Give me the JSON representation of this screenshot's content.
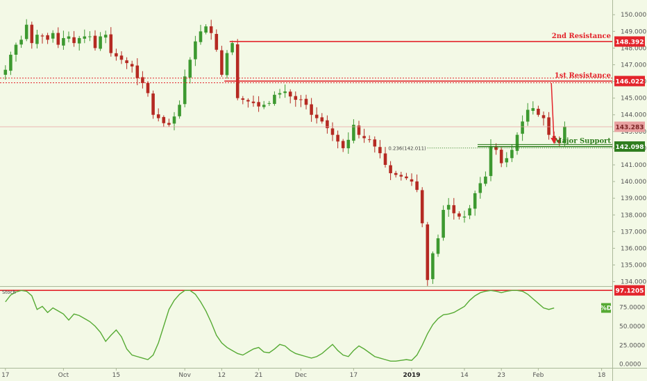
{
  "chart_data": {
    "type": "candlestick",
    "colors": {
      "background": "#f3f9e6",
      "up": "#3d9930",
      "down": "#b52a22",
      "resistance": "#e3242b",
      "support": "#2e7d1e",
      "stoch": "#55aa33",
      "axis_text": "#555555",
      "price_tag": "#e8a0a0"
    },
    "price_axis": {
      "range": [
        133.9,
        150.3
      ],
      "ticks": [
        "150.000",
        "149.000",
        "148.000",
        "147.000",
        "146.000",
        "145.000",
        "144.000",
        "143.000",
        "142.000",
        "141.000",
        "140.000",
        "139.000",
        "138.000",
        "137.000",
        "136.000",
        "135.000",
        "134.000"
      ]
    },
    "stoch_axis": {
      "range": [
        -3,
        100
      ],
      "ticks": [
        "100.0000",
        "75.0000",
        "50.0000",
        "25.0000",
        "0.0000"
      ]
    },
    "x_axis": {
      "labels": [
        {
          "text": "17",
          "bar": 0
        },
        {
          "text": "Oct",
          "bar": 11
        },
        {
          "text": "15",
          "bar": 21
        },
        {
          "text": "Nov",
          "bar": 34
        },
        {
          "text": "12",
          "bar": 41
        },
        {
          "text": "21",
          "bar": 48
        },
        {
          "text": "Dec",
          "bar": 56
        },
        {
          "text": "17",
          "bar": 66
        },
        {
          "text": "2019",
          "bar": 77,
          "bold": true
        },
        {
          "text": "14",
          "bar": 87
        },
        {
          "text": "23",
          "bar": 94
        },
        {
          "text": "Feb",
          "bar": 101
        },
        {
          "text": "18",
          "bar": 113
        }
      ],
      "bar_count": 115
    },
    "levels": [
      {
        "name": "2nd Resistance",
        "value": 148.392,
        "tag": "148.392",
        "from_bar": 43,
        "style": "solid",
        "color": "#e3242b"
      },
      {
        "name": "1st Resistance",
        "value": 146.022,
        "tag": "146.022",
        "from_bar": 42,
        "style": "solid",
        "color": "#e3242b"
      },
      {
        "name": "Major Support",
        "value": 142.098,
        "tag": "142.098",
        "from_bar": 90,
        "style": "solid",
        "color": "#2e7d1e"
      }
    ],
    "dotted_levels": [
      {
        "value": 146.2,
        "color": "#e3242b"
      },
      {
        "value": 145.92,
        "color": "#e3242b"
      }
    ],
    "fib": {
      "label": "0.236(142.011)",
      "value": 142.011,
      "from_bar": 80
    },
    "last_price": {
      "value": 143.283,
      "tag": "143.283"
    },
    "arrow": {
      "from_value": 145.9,
      "to_value": 142.25,
      "bar": 104
    },
    "stoch_level": {
      "value": 97.1205,
      "tag": "97.1205"
    },
    "stoch_badge": "%D",
    "stoch_title": "Stoch",
    "closes": [
      146.7,
      147.6,
      148.2,
      148.5,
      149.4,
      148.3,
      148.8,
      148.7,
      148.5,
      148.9,
      148.2,
      148.6,
      148.7,
      148.3,
      148.6,
      148.7,
      148.7,
      148.0,
      148.7,
      148.8,
      147.7,
      147.5,
      147.3,
      147.1,
      146.9,
      146.2,
      145.9,
      145.3,
      144.0,
      143.8,
      143.5,
      143.4,
      143.9,
      144.6,
      146.3,
      147.3,
      148.4,
      149.0,
      149.3,
      148.9,
      147.9,
      146.4,
      147.7,
      148.3,
      145.0,
      144.9,
      144.8,
      144.7,
      144.5,
      144.6,
      144.7,
      145.2,
      145.3,
      145.4,
      145.1,
      144.9,
      144.9,
      144.6,
      144.0,
      143.8,
      143.6,
      143.2,
      142.8,
      142.4,
      142.0,
      142.5,
      143.4,
      142.8,
      142.6,
      142.5,
      142.1,
      141.7,
      141.0,
      140.5,
      140.4,
      140.3,
      140.2,
      140.0,
      139.5,
      137.5,
      134.1,
      135.7,
      136.6,
      138.3,
      138.6,
      138.1,
      137.9,
      137.9,
      138.4,
      139.3,
      139.9,
      140.3,
      142.1,
      141.9,
      141.1,
      141.4,
      141.9,
      142.8,
      143.6,
      144.3,
      144.4,
      144.0,
      143.8,
      142.8,
      142.5,
      142.3,
      143.3
    ],
    "stoch": [
      82,
      91,
      95,
      97,
      96,
      90,
      72,
      76,
      68,
      74,
      70,
      66,
      58,
      66,
      64,
      60,
      56,
      50,
      42,
      30,
      38,
      45,
      36,
      20,
      12,
      10,
      8,
      6,
      12,
      28,
      50,
      72,
      84,
      92,
      97,
      97,
      92,
      82,
      70,
      55,
      38,
      28,
      22,
      18,
      14,
      12,
      16,
      20,
      22,
      16,
      15,
      20,
      26,
      24,
      18,
      14,
      12,
      10,
      8,
      10,
      14,
      20,
      26,
      18,
      12,
      10,
      18,
      24,
      20,
      15,
      10,
      8,
      6,
      4,
      4,
      5,
      6,
      5,
      12,
      25,
      40,
      52,
      60,
      65,
      66,
      68,
      72,
      76,
      84,
      90,
      94,
      96,
      97,
      96,
      94,
      96,
      97,
      97,
      96,
      92,
      86,
      80,
      74,
      72,
      74
    ]
  }
}
